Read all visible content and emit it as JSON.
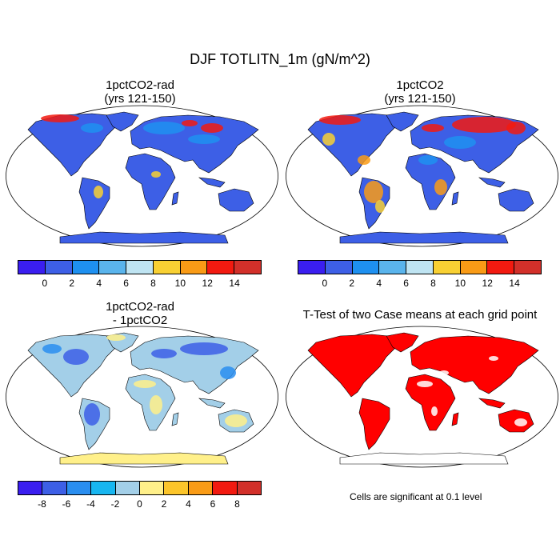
{
  "figure": {
    "title": "DJF TOTLITN_1m (gN/m^2)"
  },
  "panels": [
    {
      "id": "rad",
      "title_line1": "1pctCO2-rad",
      "title_line2": "(yrs 121-150)"
    },
    {
      "id": "base",
      "title_line1": "1pctCO2",
      "title_line2": "(yrs 121-150)"
    },
    {
      "id": "diff",
      "title_line1": "1pctCO2-rad",
      "title_line2": "- 1pctCO2"
    },
    {
      "id": "ttest",
      "title_line1": "T-Test of two Case means at each grid point",
      "title_line2": ""
    }
  ],
  "colorbars": {
    "absolute": {
      "colors": [
        "#3a1ef0",
        "#3d5fe6",
        "#1e90f0",
        "#5ab4ec",
        "#bfe4f2",
        "#f8d033",
        "#f99b16",
        "#f21a10",
        "#d2302a"
      ],
      "tick_labels": [
        "0",
        "2",
        "4",
        "6",
        "8",
        "10",
        "12",
        "14"
      ]
    },
    "difference": {
      "colors": [
        "#3a1ef0",
        "#3d5fe6",
        "#2a8ef0",
        "#18b6f0",
        "#a3cfe8",
        "#fff08a",
        "#fcc52a",
        "#f99b16",
        "#f21a10",
        "#d2302a"
      ],
      "tick_labels": [
        "-8",
        "-6",
        "-4",
        "-2",
        "0",
        "2",
        "4",
        "6",
        "8"
      ]
    }
  },
  "significance_note": "Cells are significant at 0.1 level",
  "map_colors": {
    "ocean": "#ffffff",
    "land_low": "#3d5fe6",
    "land_high": "#f21a10",
    "antarctica_diff": "#fff08a",
    "ttest_sig": "#ff0000"
  }
}
